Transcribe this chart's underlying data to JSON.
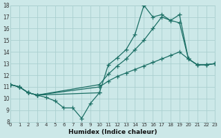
{
  "xlabel": "Humidex (Indice chaleur)",
  "bg_color": "#cce8e8",
  "grid_color": "#aacfcf",
  "line_color": "#1a6e64",
  "xlim": [
    0,
    23
  ],
  "ylim": [
    8,
    18
  ],
  "xtick_vals": [
    0,
    1,
    2,
    3,
    4,
    5,
    6,
    7,
    8,
    9,
    10,
    11,
    12,
    13,
    14,
    15,
    16,
    17,
    18,
    19,
    20,
    21,
    22,
    23
  ],
  "ytick_vals": [
    8,
    9,
    10,
    11,
    12,
    13,
    14,
    15,
    16,
    17,
    18
  ],
  "lines": [
    {
      "x": [
        0,
        1,
        2,
        3,
        4,
        5,
        6,
        7,
        8,
        9,
        10
      ],
      "y": [
        11.2,
        11.0,
        10.5,
        10.3,
        10.1,
        9.8,
        9.2,
        9.2,
        8.3,
        9.6,
        10.5
      ]
    },
    {
      "x": [
        0,
        1,
        2,
        3,
        10,
        11,
        12,
        13,
        14,
        15,
        16,
        17,
        18,
        19,
        20,
        21,
        22,
        23
      ],
      "y": [
        11.2,
        11.0,
        10.5,
        10.3,
        10.5,
        12.9,
        13.5,
        14.2,
        15.5,
        18.0,
        17.0,
        17.2,
        16.7,
        17.2,
        13.4,
        12.9,
        12.9,
        13.0
      ]
    },
    {
      "x": [
        0,
        1,
        2,
        3,
        10,
        11,
        12,
        13,
        14,
        15,
        16,
        17,
        18,
        19,
        20,
        21,
        22,
        23
      ],
      "y": [
        11.2,
        11.0,
        10.5,
        10.3,
        11.2,
        12.1,
        12.8,
        13.4,
        14.2,
        15.0,
        16.0,
        17.0,
        16.7,
        16.5,
        13.4,
        12.9,
        12.9,
        13.0
      ]
    },
    {
      "x": [
        0,
        1,
        2,
        3,
        10,
        11,
        12,
        13,
        14,
        15,
        16,
        17,
        18,
        19,
        20,
        21,
        22,
        23
      ],
      "y": [
        11.2,
        11.0,
        10.5,
        10.3,
        11.0,
        11.5,
        11.9,
        12.2,
        12.5,
        12.8,
        13.1,
        13.4,
        13.7,
        14.0,
        13.4,
        12.9,
        12.9,
        13.0
      ]
    }
  ]
}
